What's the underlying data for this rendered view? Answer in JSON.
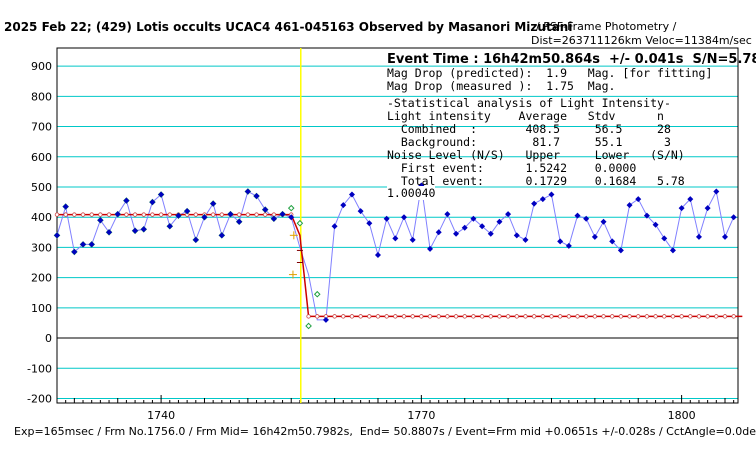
{
  "header": {
    "title": "2025 Feb 22; (429) Lotis occults UCAC4 461-045163 Observed by Masanori Mizutani",
    "subtitle": "/ PSF-Frame Photometry /",
    "distance": "Dist=263711126km Veloc=11384m/sec"
  },
  "stats": {
    "event_time": "Event Time : 16h42m50.864s  +/- 0.041s  S/N=5.78",
    "mag_drop_pred": "Mag Drop (predicted):  1.9   Mag. [for fitting]",
    "mag_drop_meas": "Mag Drop (measured ):  1.75  Mag.",
    "section": "-Statistical analysis of Light Intensity-",
    "col_header": "Light intensity    Average   Stdv      n",
    "combined": "  Combined  :       408.5     56.5     28",
    "background": "  Background:        81.7     55.1      3",
    "noise_header": "Noise Level (N/S)   Upper     Lower   (S/N)",
    "first_event": "  First event:      1.5242    0.0000",
    "total_event": "  Total event:      0.1729    0.1684   5.78",
    "ratio_label": "1.00040"
  },
  "footer": {
    "text": "Exp=165msec / Frm No.1756.0 / Frm Mid= 16h42m50.7982s,  End= 50.8807s / Event=Frm mid +0.0651s +/-0.028s / CctAngle=0.0deg"
  },
  "colors": {
    "grid": "#00c8c8",
    "event_line": "#ffff00",
    "observed_line": "#8080ff",
    "observed_marker": "#0000c0",
    "comparison_marker": "#20a040",
    "model_line": "#cc0000",
    "model_marker": "#cc4444"
  },
  "chart_data": {
    "type": "line",
    "title": "2025 Feb 22; (429) Lotis occults UCAC4 461-045163 Observed by Masanori Mizutani",
    "xlabel": "",
    "ylabel": "",
    "xlim": [
      1728,
      1806.5
    ],
    "ylim": [
      -215,
      960
    ],
    "xticks": [
      1740,
      1770,
      1800
    ],
    "yticks": [
      -200,
      -100,
      0,
      100,
      200,
      300,
      400,
      500,
      600,
      700,
      800,
      900
    ],
    "event_frame": 1756.1,
    "series": [
      {
        "role": "observed_pre",
        "x": [
          1728,
          1729,
          1730,
          1731,
          1732,
          1733,
          1734,
          1735,
          1736,
          1737,
          1738,
          1739,
          1740,
          1741,
          1742,
          1743,
          1744,
          1745,
          1746,
          1747,
          1748,
          1749,
          1750,
          1751,
          1752,
          1753,
          1754,
          1755
        ],
        "values": [
          340,
          435,
          285,
          310,
          310,
          390,
          350,
          410,
          455,
          355,
          360,
          450,
          475,
          370,
          405,
          420,
          325,
          400,
          445,
          340,
          410,
          385,
          485,
          470,
          425,
          395,
          410,
          400
        ]
      },
      {
        "role": "comparison",
        "x": [
          1728,
          1729,
          1730,
          1731,
          1732,
          1733,
          1734,
          1735,
          1736,
          1737,
          1738,
          1739,
          1740,
          1741,
          1742,
          1743,
          1744,
          1745,
          1746,
          1747,
          1748,
          1749,
          1750,
          1751,
          1752,
          1753,
          1754,
          1755,
          1756,
          1757,
          1758
        ],
        "values": [
          340,
          435,
          285,
          310,
          310,
          390,
          350,
          410,
          455,
          355,
          360,
          450,
          475,
          370,
          405,
          420,
          325,
          400,
          445,
          340,
          410,
          385,
          485,
          470,
          425,
          395,
          410,
          430,
          380,
          40,
          145
        ]
      },
      {
        "role": "observed_post",
        "x": [
          1759,
          1760,
          1761,
          1762,
          1763,
          1764,
          1765,
          1766,
          1767,
          1768,
          1769,
          1770,
          1771,
          1772,
          1773,
          1774,
          1775,
          1776,
          1777,
          1778,
          1779,
          1780,
          1781,
          1782,
          1783,
          1784,
          1785,
          1786,
          1787,
          1788,
          1789,
          1790,
          1791,
          1792,
          1793,
          1794,
          1795,
          1796,
          1797,
          1798,
          1799,
          1800,
          1801,
          1802,
          1803,
          1804,
          1805,
          1806
        ],
        "values": [
          60,
          370,
          440,
          475,
          420,
          380,
          275,
          395,
          330,
          400,
          325,
          505,
          295,
          350,
          410,
          345,
          365,
          395,
          370,
          345,
          385,
          410,
          340,
          325,
          445,
          460,
          475,
          320,
          305,
          405,
          395,
          335,
          385,
          320,
          290,
          440,
          460,
          405,
          375,
          330,
          290,
          430,
          460,
          335,
          430,
          485,
          335,
          400
        ]
      },
      {
        "role": "model",
        "x": [
          1728,
          1755,
          1756,
          1757,
          1807
        ],
        "values": [
          408.5,
          408.5,
          340,
          71.7,
          71.7
        ]
      }
    ]
  }
}
